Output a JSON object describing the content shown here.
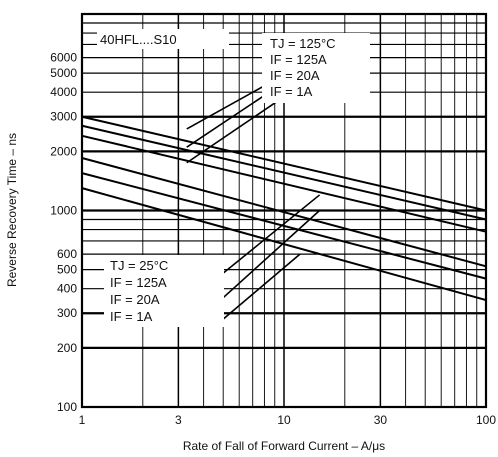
{
  "chart_data": {
    "type": "line",
    "title": "",
    "device_label": "40HFL....S10",
    "xlabel": "Rate of Fall of Forward Current – A/μs",
    "ylabel": "Reverse Recovery Time – ns",
    "xscale": "log",
    "yscale": "log",
    "xlim": [
      1,
      100
    ],
    "ylim": [
      100,
      10000
    ],
    "grid": true,
    "x_tick_labels": [
      "1",
      "3",
      "10",
      "30",
      "100"
    ],
    "y_tick_labels": [
      "100",
      "200",
      "300",
      "400",
      "500",
      "600",
      "1000",
      "2000",
      "3000",
      "4000",
      "5000",
      "6000"
    ],
    "annotations": [
      {
        "id": "hot",
        "condition": "TJ = 125°C",
        "currents": [
          "IF = 125A",
          "IF = 20A",
          "IF = 1A"
        ]
      },
      {
        "id": "cold",
        "condition": "TJ = 25°C",
        "currents": [
          "IF = 125A",
          "IF = 20A",
          "IF = 1A"
        ]
      }
    ],
    "series": [
      {
        "x": [
          1,
          100
        ],
        "y": [
          3000,
          1000
        ]
      },
      {
        "x": [
          1,
          100
        ],
        "y": [
          2700,
          900
        ]
      },
      {
        "x": [
          1,
          100
        ],
        "y": [
          2400,
          780
        ]
      },
      {
        "x": [
          1,
          100
        ],
        "y": [
          1850,
          520
        ]
      },
      {
        "x": [
          1,
          100
        ],
        "y": [
          1550,
          450
        ]
      },
      {
        "x": [
          1,
          100
        ],
        "y": [
          1300,
          350
        ]
      }
    ]
  }
}
